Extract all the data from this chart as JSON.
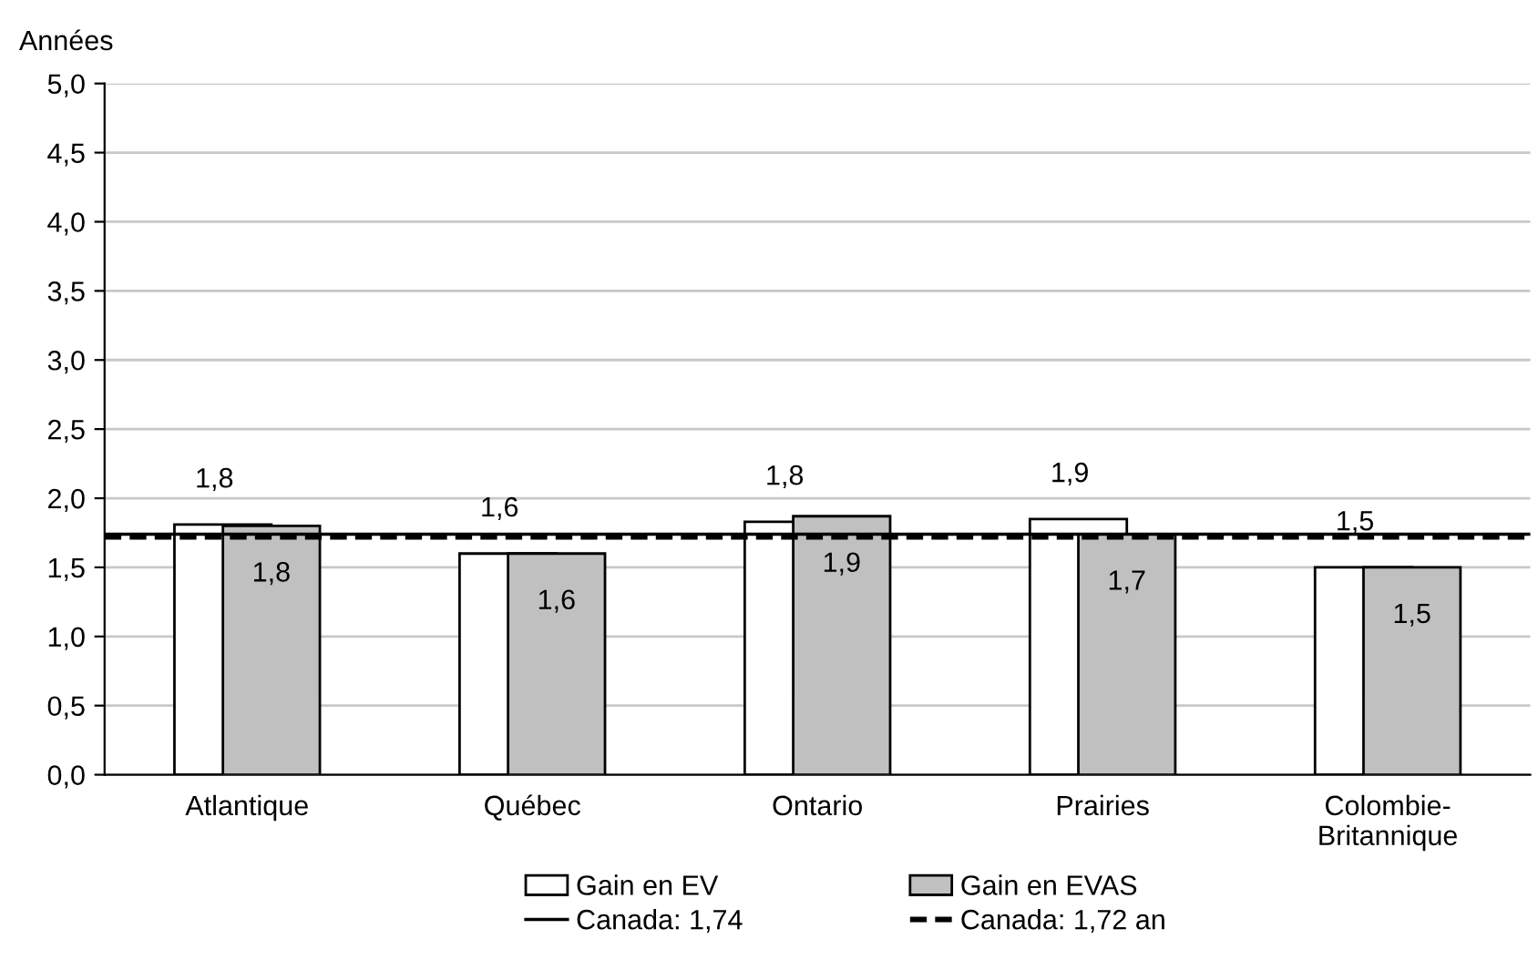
{
  "chart_data": {
    "type": "bar",
    "ylabel": "Années",
    "categories": [
      "Atlantique",
      "Québec",
      "Ontario",
      "Prairies",
      "Colombie-\nBritannique"
    ],
    "series": [
      {
        "name": "Gain en EV",
        "color": "#ffffff",
        "values": [
          1.81,
          1.6,
          1.83,
          1.85,
          1.5
        ],
        "value_labels": [
          "1,8",
          "1,6",
          "1,8",
          "1,9",
          "1,5"
        ]
      },
      {
        "name": "Gain en EVAS",
        "color": "#c0c0c0",
        "values": [
          1.8,
          1.6,
          1.87,
          1.74,
          1.5
        ],
        "value_labels": [
          "1,8",
          "1,6",
          "1,9",
          "1,7",
          "1,5"
        ]
      }
    ],
    "ref_lines": [
      {
        "axis": "y",
        "value": 1.74,
        "label": "Canada: 1,74",
        "color": "#000000",
        "line_style": "solid"
      },
      {
        "axis": "y",
        "value": 1.72,
        "label": "Canada: 1,72 an",
        "color": "#000000",
        "line_style": "dashed"
      }
    ],
    "ylim": [
      0,
      5
    ],
    "yticks": [
      {
        "value": 0,
        "label": "0,0"
      },
      {
        "value": 0.5,
        "label": "0,5"
      },
      {
        "value": 1,
        "label": "1,0"
      },
      {
        "value": 1.5,
        "label": "1,5"
      },
      {
        "value": 2,
        "label": "2,0"
      },
      {
        "value": 2.5,
        "label": "2,5"
      },
      {
        "value": 3,
        "label": "3,0"
      },
      {
        "value": 3.5,
        "label": "3,5"
      },
      {
        "value": 4,
        "label": "4,0"
      },
      {
        "value": 4.5,
        "label": "4,5"
      },
      {
        "value": 5,
        "label": "5,0"
      }
    ],
    "grid": "y",
    "legend": "bottom"
  }
}
